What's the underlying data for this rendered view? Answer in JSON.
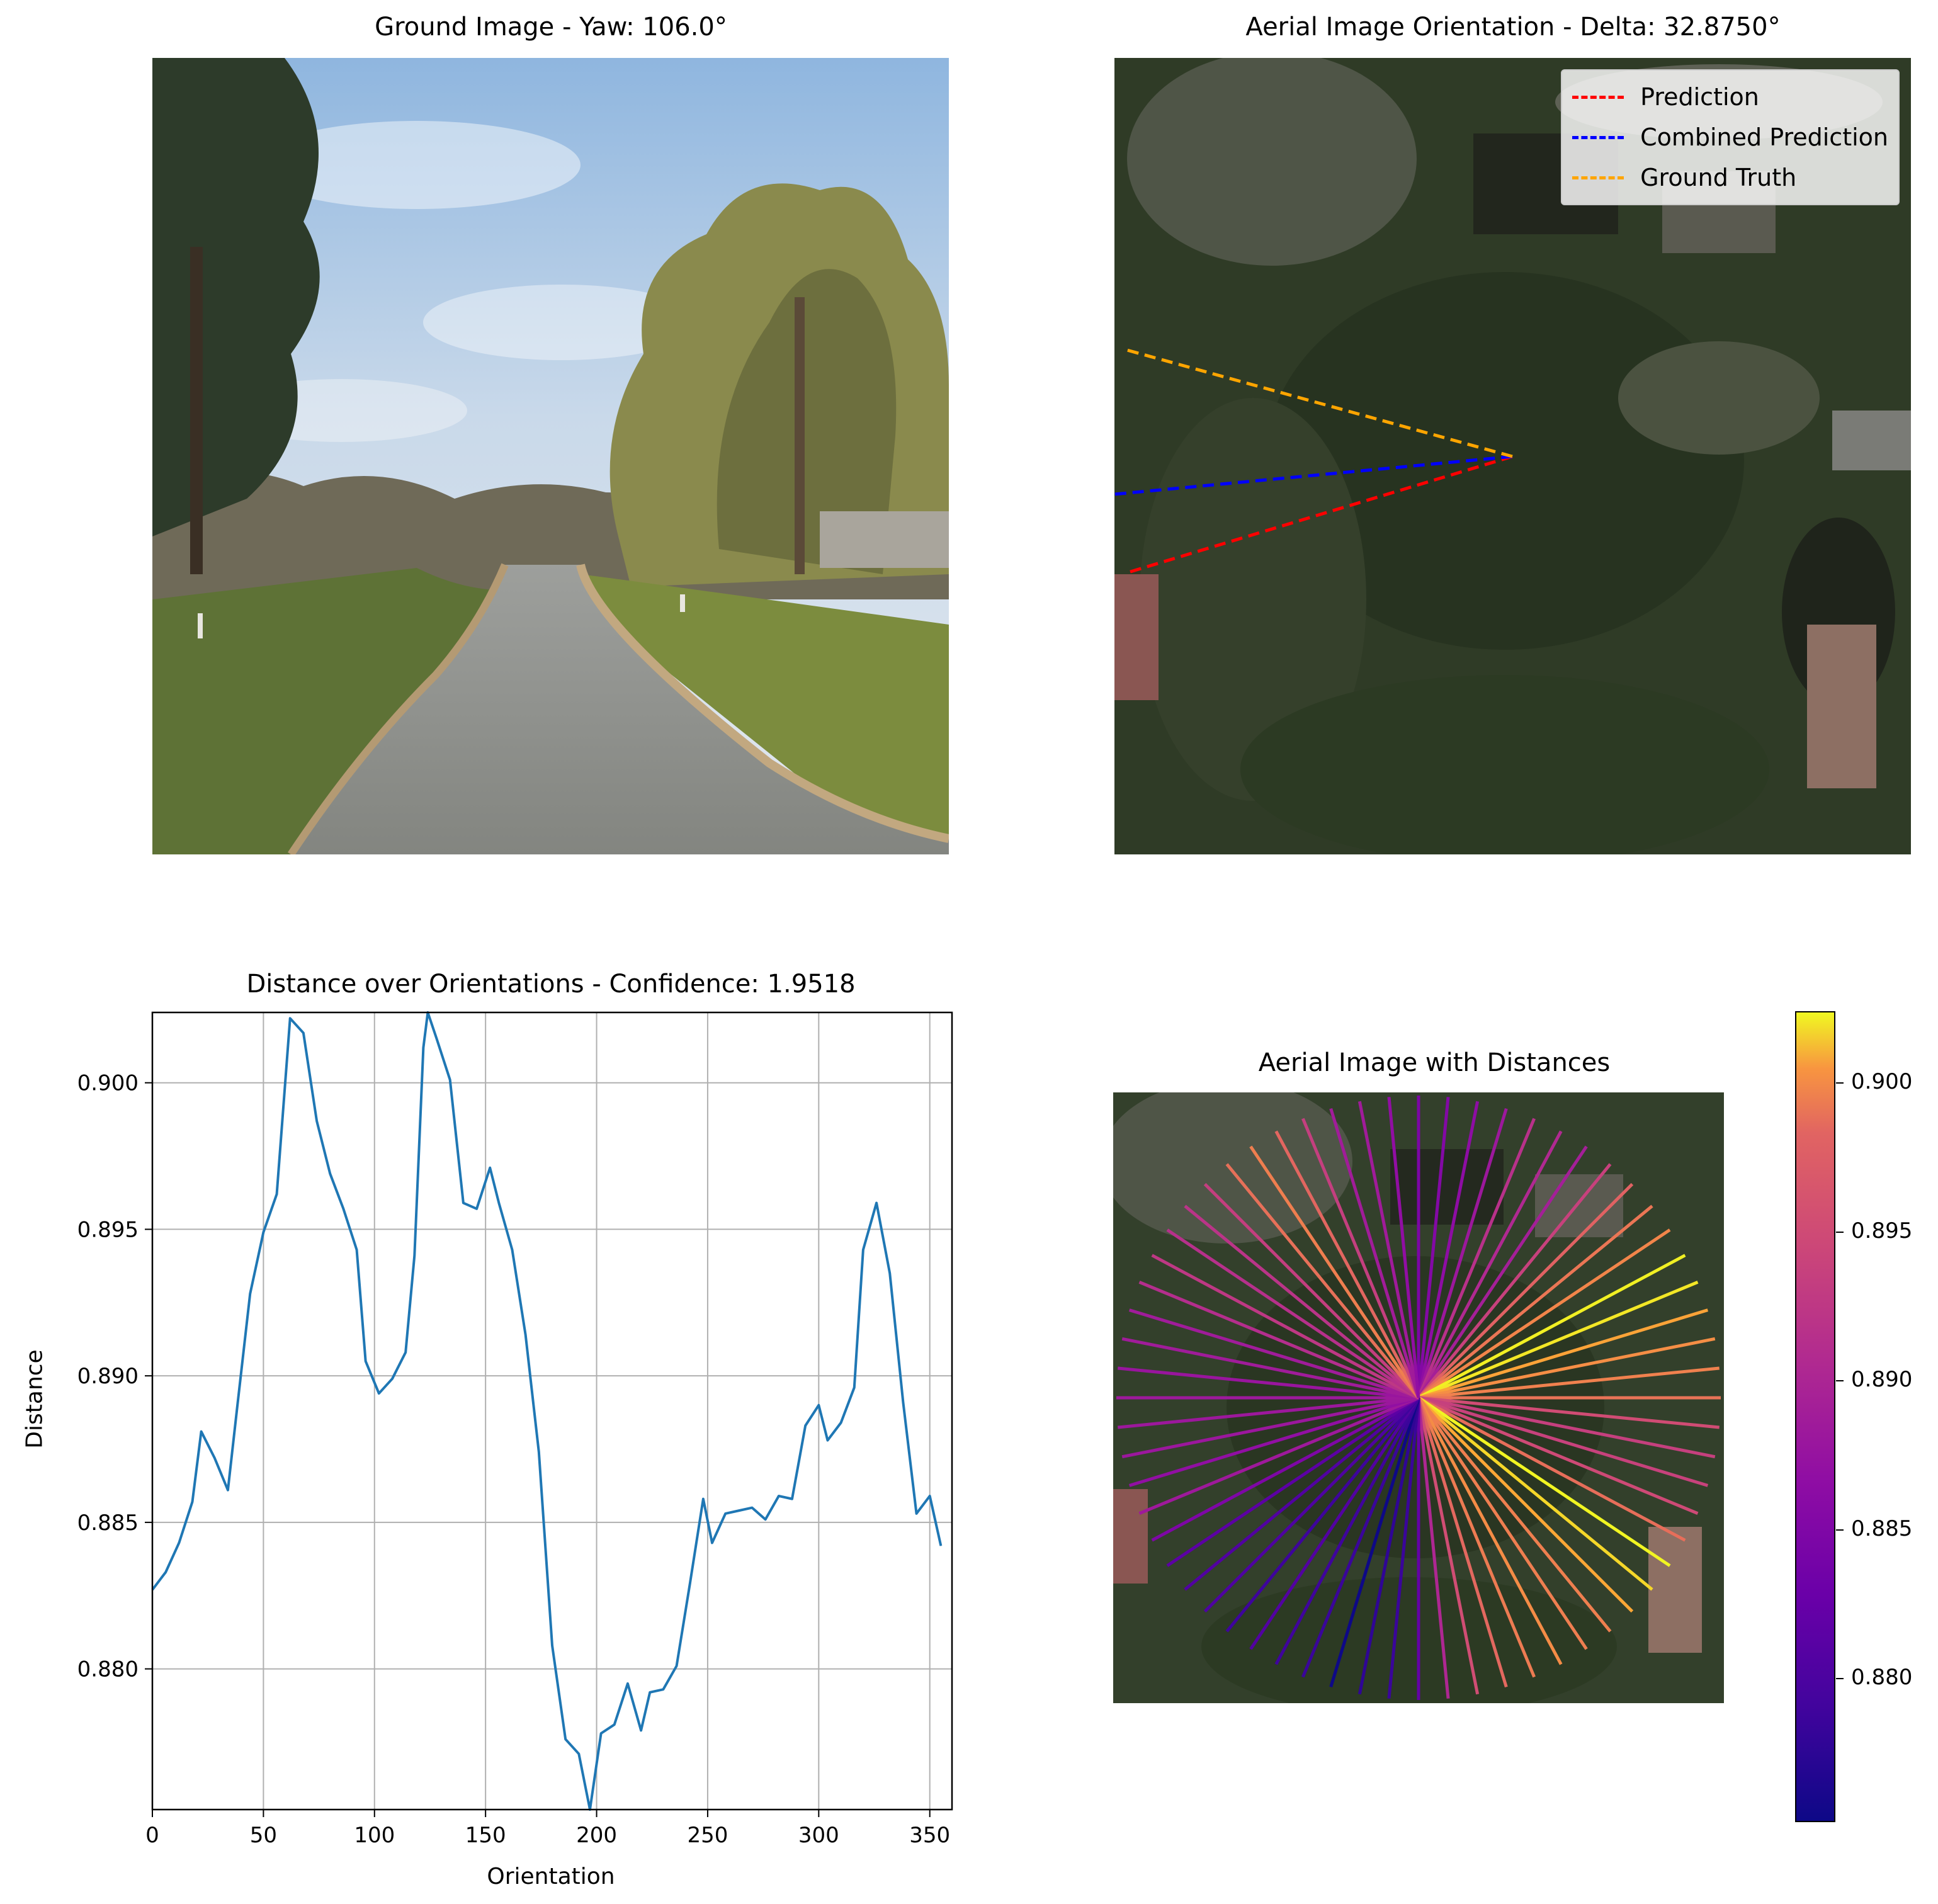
{
  "panels": {
    "ground": {
      "title": "Ground Image - Yaw: 106.0°"
    },
    "aerial_orientation": {
      "title": "Aerial Image Orientation - Delta: 32.8750°",
      "legend": {
        "placement": "top-right",
        "items": [
          {
            "label": "Prediction",
            "color": "#ff0000"
          },
          {
            "label": "Combined Prediction",
            "color": "#0000ff"
          },
          {
            "label": "Ground Truth",
            "color": "#ffa500"
          }
        ]
      }
    },
    "distance_plot": {
      "title": "Distance over Orientations - Confidence: 1.9518"
    },
    "aerial_distances": {
      "title": "Aerial Image with Distances"
    }
  },
  "chart_data": [
    {
      "type": "line",
      "title": "Distance over Orientations - Confidence: 1.9518",
      "xlabel": "Orientation",
      "ylabel": "Distance",
      "xlim": [
        0,
        360
      ],
      "ylim": [
        0.8752,
        0.9024
      ],
      "grid": true,
      "xticks": [
        0,
        50,
        100,
        150,
        200,
        250,
        300,
        350
      ],
      "yticks": [
        0.88,
        0.885,
        0.89,
        0.895,
        0.9
      ],
      "ytick_labels": [
        "0.880",
        "0.885",
        "0.890",
        "0.895",
        "0.900"
      ],
      "line_color": "#1f77b4",
      "x": [
        0,
        6,
        12,
        18,
        22,
        28,
        34,
        38,
        44,
        50,
        56,
        62,
        68,
        74,
        80,
        86,
        92,
        96,
        102,
        108,
        114,
        118,
        122,
        124,
        128,
        134,
        140,
        146,
        152,
        156,
        162,
        168,
        174,
        180,
        186,
        192,
        197,
        202,
        208,
        214,
        220,
        224,
        230,
        236,
        242,
        248,
        252,
        258,
        264,
        270,
        276,
        282,
        288,
        294,
        300,
        304,
        310,
        316,
        320,
        326,
        332,
        338,
        344,
        350,
        355
      ],
      "y": [
        0.8827,
        0.8833,
        0.8843,
        0.8857,
        0.8881,
        0.8872,
        0.8861,
        0.8888,
        0.8928,
        0.8949,
        0.8962,
        0.9022,
        0.9017,
        0.8987,
        0.8969,
        0.8957,
        0.8943,
        0.8905,
        0.8894,
        0.8899,
        0.8908,
        0.8941,
        0.9012,
        0.9024,
        0.9015,
        0.9001,
        0.8959,
        0.8957,
        0.8971,
        0.8959,
        0.8943,
        0.8914,
        0.8874,
        0.8808,
        0.8776,
        0.8771,
        0.8752,
        0.8778,
        0.8781,
        0.8795,
        0.8779,
        0.8792,
        0.8793,
        0.8801,
        0.8829,
        0.8858,
        0.8843,
        0.8853,
        0.8854,
        0.8855,
        0.8851,
        0.8859,
        0.8858,
        0.8883,
        0.889,
        0.8878,
        0.8884,
        0.8896,
        0.8943,
        0.8959,
        0.8935,
        0.8891,
        0.8853,
        0.8859,
        0.8842
      ]
    },
    {
      "type": "heatmap",
      "title": "Aerial Image with Distances",
      "colormap": "plasma",
      "colorbar_range": [
        0.8752,
        0.9024
      ],
      "colorbar_ticks": [
        "0.880",
        "0.885",
        "0.890",
        "0.895",
        "0.900"
      ],
      "ray_count": 64
    },
    {
      "type": "line",
      "title": "Aerial Image Orientation - Delta: 32.8750°",
      "series": [
        {
          "name": "Prediction",
          "color": "#ff0000"
        },
        {
          "name": "Combined Prediction",
          "color": "#0000ff"
        },
        {
          "name": "Ground Truth",
          "color": "#ffa500"
        }
      ]
    }
  ]
}
